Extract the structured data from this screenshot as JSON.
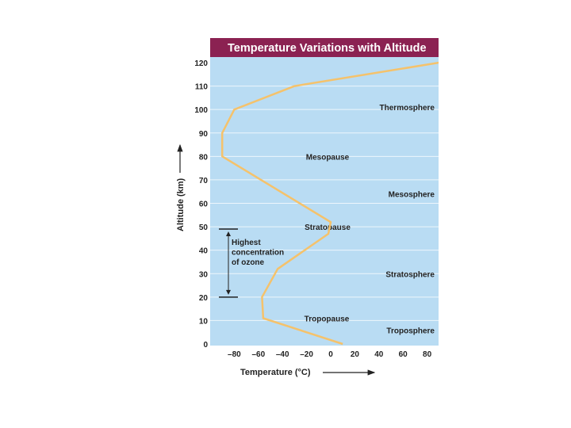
{
  "chart_data": {
    "type": "line",
    "title": "Temperature Variations with Altitude",
    "xlabel": "Temperature (°C)",
    "ylabel": "Altitude (km)",
    "xlim": [
      -100,
      90
    ],
    "ylim": [
      0,
      120
    ],
    "x_ticks": [
      -80,
      -60,
      -40,
      -20,
      0,
      20,
      40,
      60,
      80
    ],
    "x_tick_labels": [
      "–80",
      "–60",
      "–40",
      "–20",
      "0",
      "20",
      "40",
      "60",
      "80"
    ],
    "y_ticks": [
      0,
      10,
      20,
      30,
      40,
      50,
      60,
      70,
      80,
      90,
      100,
      110,
      120
    ],
    "y_tick_labels": [
      "0",
      "10",
      "20",
      "30",
      "40",
      "50",
      "60",
      "70",
      "80",
      "90",
      "100",
      "110",
      "120"
    ],
    "boundaries": [
      {
        "label": "Tropopause",
        "altitude": 11
      },
      {
        "label": "Stratopause",
        "altitude": 50
      },
      {
        "label": "Mesopause",
        "altitude": 80
      }
    ],
    "layers": [
      {
        "label": "Troposphere",
        "altitude": 6
      },
      {
        "label": "Stratosphere",
        "altitude": 30
      },
      {
        "label": "Mesosphere",
        "altitude": 64
      },
      {
        "label": "Thermosphere",
        "altitude": 101
      }
    ],
    "ozone": {
      "label_lines": [
        "Highest",
        "concentration",
        "of ozone"
      ],
      "range": [
        20,
        49
      ]
    },
    "series": [
      {
        "name": "Temperature",
        "color": "#f5c26b",
        "points": [
          {
            "x": 10,
            "y": 0
          },
          {
            "x": -56,
            "y": 11
          },
          {
            "x": -57,
            "y": 20
          },
          {
            "x": -44,
            "y": 32
          },
          {
            "x": -2,
            "y": 47
          },
          {
            "x": 0,
            "y": 52
          },
          {
            "x": -90,
            "y": 80
          },
          {
            "x": -90,
            "y": 90
          },
          {
            "x": -80,
            "y": 100
          },
          {
            "x": -30,
            "y": 110
          },
          {
            "x": 90,
            "y": 120
          }
        ]
      }
    ]
  },
  "colors": {
    "plot_bg": "#b9dcf3",
    "title_bg": "#8b2252",
    "grid": "#ffffff",
    "line": "#f5c26b"
  }
}
